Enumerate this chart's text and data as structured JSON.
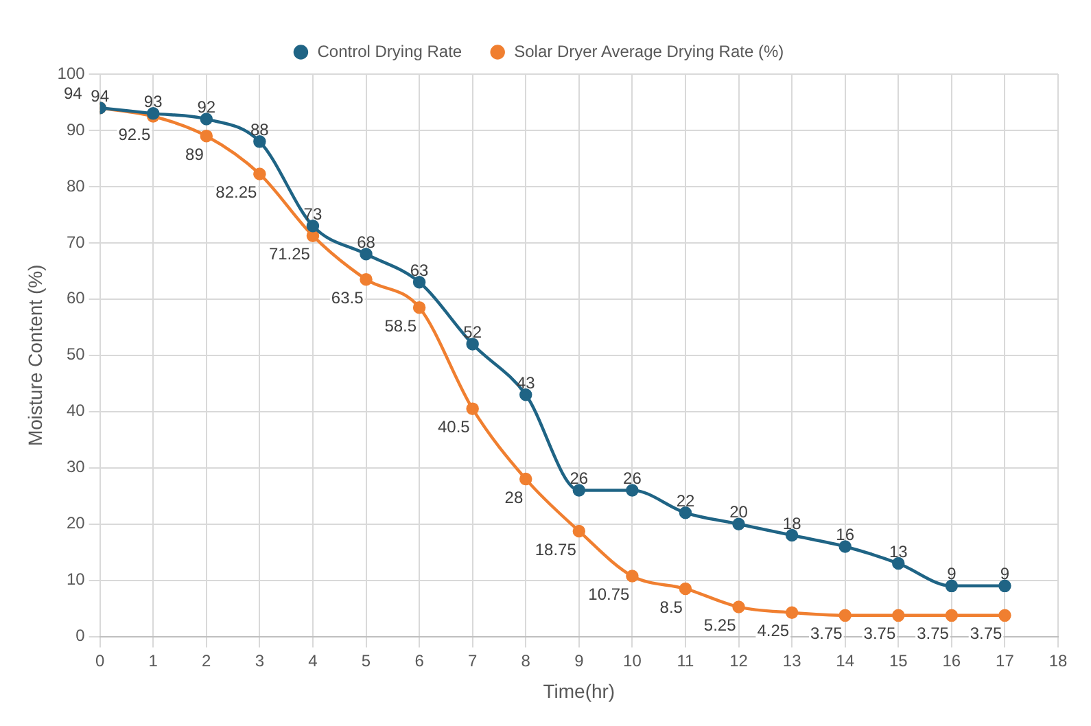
{
  "chart_data": {
    "type": "line",
    "xlabel": "Time(hr)",
    "ylabel": "Moisture Content (%)",
    "x": [
      0,
      1,
      2,
      3,
      4,
      5,
      6,
      7,
      8,
      9,
      10,
      11,
      12,
      13,
      14,
      15,
      16,
      17
    ],
    "series": [
      {
        "name": "Control Drying Rate",
        "color": "#1f6485",
        "values": [
          94,
          93,
          92,
          88,
          73,
          68,
          63,
          52,
          43,
          26,
          26,
          22,
          20,
          18,
          16,
          13,
          9,
          9
        ]
      },
      {
        "name": "Solar Dryer Average Drying Rate (%)",
        "color": "#f07f30",
        "values": [
          94,
          92.5,
          89,
          82.25,
          71.25,
          63.5,
          58.5,
          40.5,
          28,
          18.75,
          10.75,
          8.5,
          5.25,
          4.25,
          3.75,
          3.75,
          3.75,
          3.75
        ]
      }
    ],
    "xlim": [
      0,
      18
    ],
    "xticks": [
      0,
      1,
      2,
      3,
      4,
      5,
      6,
      7,
      8,
      9,
      10,
      11,
      12,
      13,
      14,
      15,
      16,
      17,
      18
    ],
    "ylim": [
      0,
      100
    ],
    "yticks": [
      0,
      10,
      20,
      30,
      40,
      50,
      60,
      70,
      80,
      90,
      100
    ],
    "grid": true,
    "legend": "top",
    "marker": "circle",
    "line_style": "solid",
    "data_labels": true
  }
}
